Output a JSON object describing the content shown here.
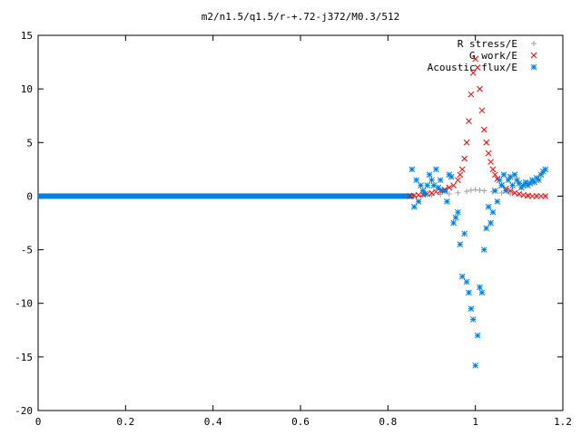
{
  "chart_data": {
    "type": "scatter",
    "title": "m2/n1.5/q1.5/r-+.72-j372/M0.3/512",
    "xlabel": "",
    "ylabel": "",
    "xlim": [
      0,
      1.2
    ],
    "ylim": [
      -20,
      15
    ],
    "x_ticks": [
      0,
      0.2,
      0.4,
      0.6,
      0.8,
      1,
      1.2
    ],
    "x_tick_labels": [
      "0",
      "0.2",
      "0.4",
      "0.6",
      "0.8",
      "1",
      "1.2"
    ],
    "y_ticks": [
      -20,
      -15,
      -10,
      -5,
      0,
      5,
      10,
      15
    ],
    "y_tick_labels": [
      "-20",
      "-15",
      "-10",
      "-5",
      "0",
      "5",
      "10",
      "15"
    ],
    "grid": false,
    "legend_position": "top-right",
    "series": [
      {
        "name": "R stress/E",
        "marker": "plus",
        "color": "#a0a0a0",
        "x": [
          0.86,
          0.88,
          0.9,
          0.92,
          0.94,
          0.96,
          0.98,
          0.99,
          1.0,
          1.01,
          1.02,
          1.04,
          1.06,
          1.08,
          1.1,
          1.12,
          1.14,
          1.16
        ],
        "y": [
          0.0,
          0.05,
          0.1,
          0.15,
          0.2,
          0.3,
          0.45,
          0.55,
          0.6,
          0.55,
          0.5,
          0.4,
          0.3,
          0.2,
          0.1,
          0.05,
          0.0,
          0.0
        ]
      },
      {
        "name": "G work/E",
        "marker": "cross",
        "color": "#ff0000",
        "x": [
          0.85,
          0.86,
          0.87,
          0.88,
          0.89,
          0.9,
          0.91,
          0.92,
          0.93,
          0.94,
          0.95,
          0.96,
          0.965,
          0.97,
          0.975,
          0.98,
          0.985,
          0.99,
          0.995,
          1.0,
          1.005,
          1.01,
          1.015,
          1.02,
          1.025,
          1.03,
          1.035,
          1.04,
          1.045,
          1.05,
          1.06,
          1.07,
          1.08,
          1.09,
          1.1,
          1.11,
          1.12,
          1.13,
          1.14,
          1.15,
          1.16
        ],
        "y": [
          0.0,
          0.05,
          0.1,
          0.15,
          0.2,
          0.3,
          0.4,
          0.5,
          0.6,
          0.8,
          1.0,
          1.5,
          2.0,
          2.5,
          3.5,
          5.0,
          7.0,
          9.5,
          11.5,
          12.8,
          12.0,
          10.0,
          8.0,
          6.2,
          5.0,
          4.0,
          3.2,
          2.5,
          2.0,
          1.6,
          1.0,
          0.7,
          0.5,
          0.3,
          0.2,
          0.1,
          0.05,
          0.0,
          0.0,
          0.0,
          0.0
        ]
      },
      {
        "name": "Acoustic flux/E",
        "marker": "asterisk",
        "color": "#0080e0",
        "x": [
          0.855,
          0.86,
          0.865,
          0.87,
          0.875,
          0.88,
          0.885,
          0.89,
          0.895,
          0.9,
          0.905,
          0.91,
          0.915,
          0.92,
          0.925,
          0.93,
          0.935,
          0.94,
          0.945,
          0.95,
          0.955,
          0.96,
          0.965,
          0.97,
          0.975,
          0.98,
          0.985,
          0.99,
          0.995,
          1.0,
          1.005,
          1.01,
          1.015,
          1.02,
          1.025,
          1.03,
          1.035,
          1.04,
          1.045,
          1.05,
          1.055,
          1.06,
          1.065,
          1.07,
          1.075,
          1.08,
          1.085,
          1.09,
          1.095,
          1.1,
          1.105,
          1.11,
          1.115,
          1.12,
          1.125,
          1.13,
          1.135,
          1.14,
          1.145,
          1.15,
          1.155,
          1.16
        ],
        "y": [
          2.5,
          -1.0,
          1.5,
          -0.5,
          1.0,
          0.5,
          0.2,
          1.0,
          2.0,
          1.5,
          1.0,
          2.5,
          0.8,
          1.5,
          0.5,
          0.5,
          -0.5,
          2.0,
          1.8,
          -2.5,
          -2.0,
          -1.5,
          -4.5,
          -7.5,
          -3.5,
          -8.0,
          -9.0,
          -10.5,
          -11.5,
          -15.8,
          -13.0,
          -8.5,
          -9.0,
          -5.0,
          -3.0,
          -1.0,
          -2.5,
          -1.5,
          0.5,
          -0.5,
          1.5,
          1.0,
          2.0,
          0.5,
          1.5,
          1.8,
          1.0,
          2.0,
          1.5,
          1.2,
          0.8,
          1.0,
          1.3,
          1.0,
          1.2,
          1.5,
          1.3,
          1.7,
          1.5,
          2.0,
          2.3,
          2.5
        ]
      }
    ]
  }
}
